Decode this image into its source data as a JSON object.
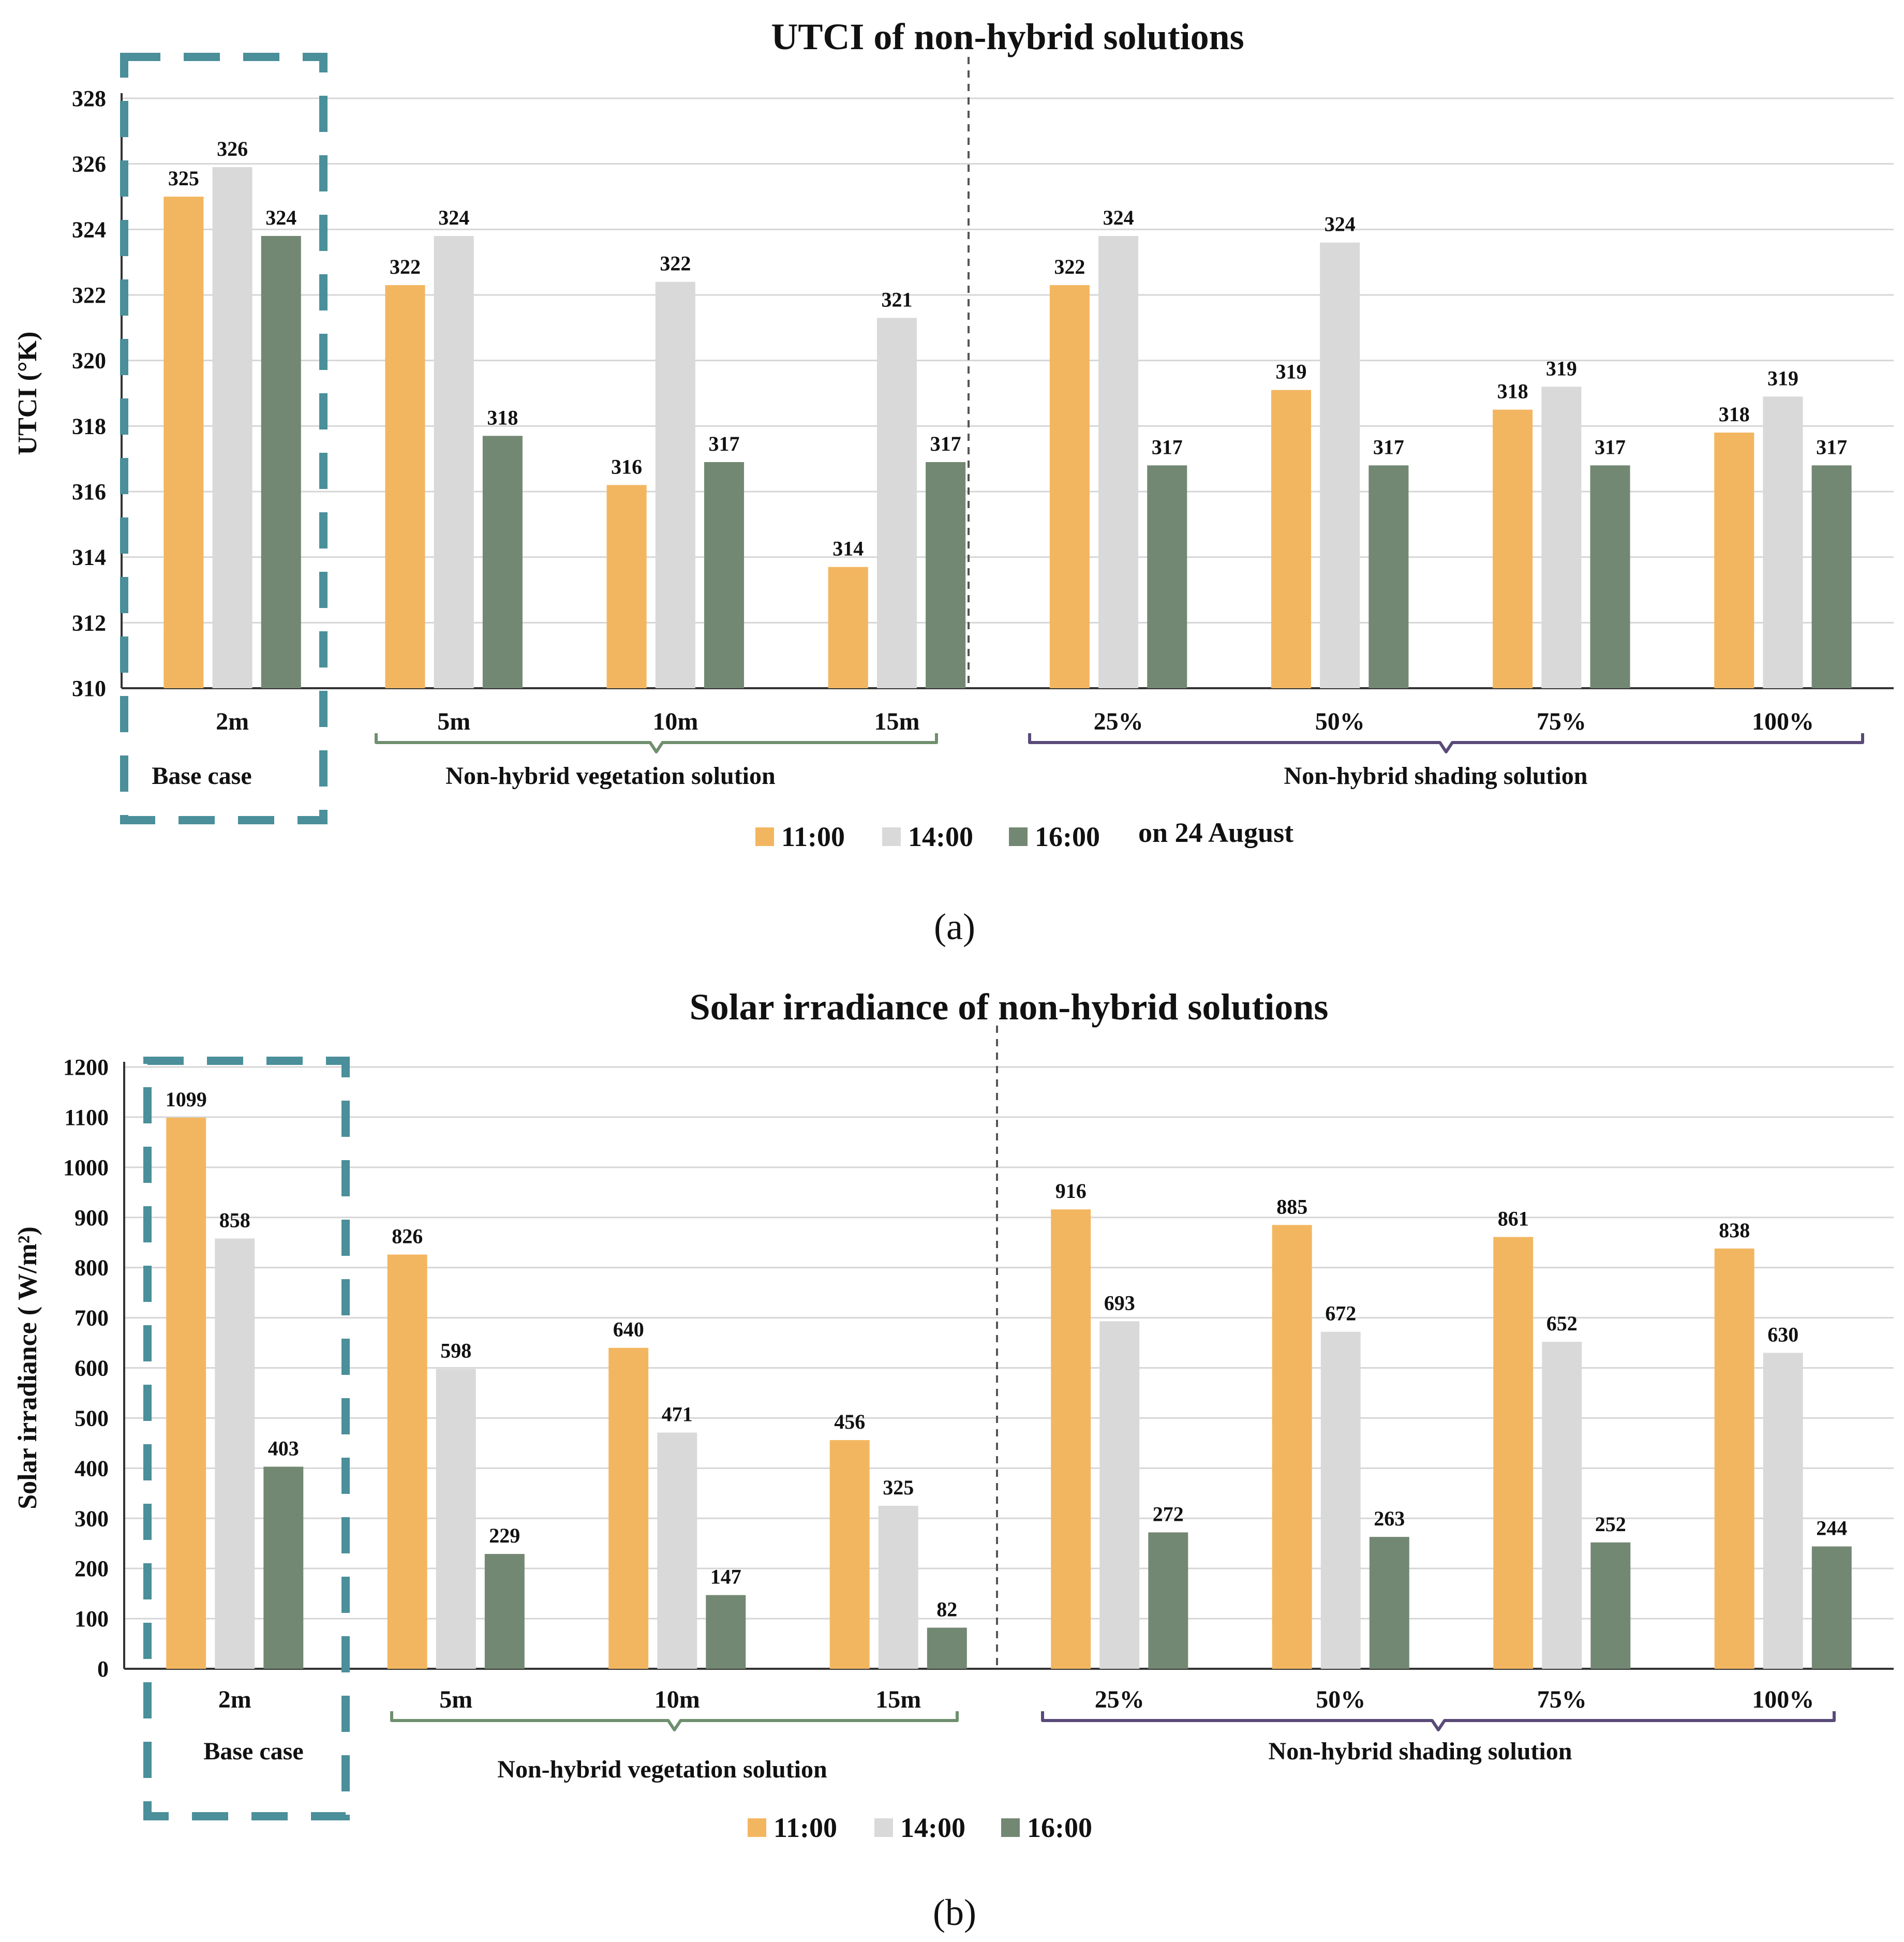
{
  "colors": {
    "c1100": "#f3b660",
    "c1400": "#d9d9d9",
    "c1600": "#738872",
    "grid": "#d6d6d6",
    "basebox": "#4a8f9a",
    "vegBrace": "#6f8f6f",
    "shadeBrace": "#5a4a78"
  },
  "chart_data": [
    {
      "type": "bar",
      "id": "utci",
      "title": "UTCI of non-hybrid solutions",
      "ylabel": "UTCI (°K)",
      "xlabel": "",
      "ylim": [
        310,
        328
      ],
      "yticks": [
        310,
        312,
        314,
        316,
        318,
        320,
        322,
        324,
        326,
        328
      ],
      "categories": [
        "2m",
        "5m",
        "10m",
        "15m",
        "25%",
        "50%",
        "75%",
        "100%"
      ],
      "series": [
        {
          "name": "11:00",
          "values": [
            325,
            322.3,
            316.2,
            313.7,
            322.3,
            319.1,
            318.5,
            317.8
          ],
          "labels": [
            "325",
            "322",
            "316",
            "314",
            "322",
            "319",
            "318",
            "318"
          ]
        },
        {
          "name": "14:00",
          "values": [
            325.9,
            323.8,
            322.4,
            321.3,
            323.8,
            323.6,
            319.2,
            318.9
          ],
          "labels": [
            "326",
            "324",
            "322",
            "321",
            "324",
            "324",
            "319",
            "319"
          ]
        },
        {
          "name": "16:00",
          "values": [
            323.8,
            317.7,
            316.9,
            316.9,
            316.8,
            316.8,
            316.8,
            316.8
          ],
          "labels": [
            "324",
            "318",
            "317",
            "317",
            "317",
            "317",
            "317",
            "317"
          ]
        }
      ],
      "groups": {
        "base": "Base case",
        "vegetation": "Non-hybrid vegetation solution",
        "shading": "Non-hybrid shading solution"
      },
      "legend_note": "on 24 August",
      "panel_label": "(a)"
    },
    {
      "type": "bar",
      "id": "solar",
      "title": "Solar irradiance of non-hybrid solutions",
      "ylabel": "Solar irradiance ( W/m²)",
      "xlabel": "",
      "ylim": [
        0,
        1200
      ],
      "yticks": [
        0,
        100,
        200,
        300,
        400,
        500,
        600,
        700,
        800,
        900,
        1000,
        1100,
        1200
      ],
      "categories": [
        "2m",
        "5m",
        "10m",
        "15m",
        "25%",
        "50%",
        "75%",
        "100%"
      ],
      "series": [
        {
          "name": "11:00",
          "values": [
            1099,
            826,
            640,
            456,
            916,
            885,
            861,
            838
          ],
          "labels": [
            "1099",
            "826",
            "640",
            "456",
            "916",
            "885",
            "861",
            "838"
          ]
        },
        {
          "name": "14:00",
          "values": [
            858,
            598,
            471,
            325,
            693,
            672,
            652,
            630
          ],
          "labels": [
            "858",
            "598",
            "471",
            "325",
            "693",
            "672",
            "652",
            "630"
          ]
        },
        {
          "name": "16:00",
          "values": [
            403,
            229,
            147,
            82,
            272,
            263,
            252,
            244
          ],
          "labels": [
            "403",
            "229",
            "147",
            "82",
            "272",
            "263",
            "252",
            "244"
          ]
        }
      ],
      "groups": {
        "base": "Base case",
        "vegetation": "Non-hybrid vegetation solution",
        "shading": "Non-hybrid shading solution"
      },
      "legend_note": "",
      "panel_label": "(b)"
    }
  ]
}
